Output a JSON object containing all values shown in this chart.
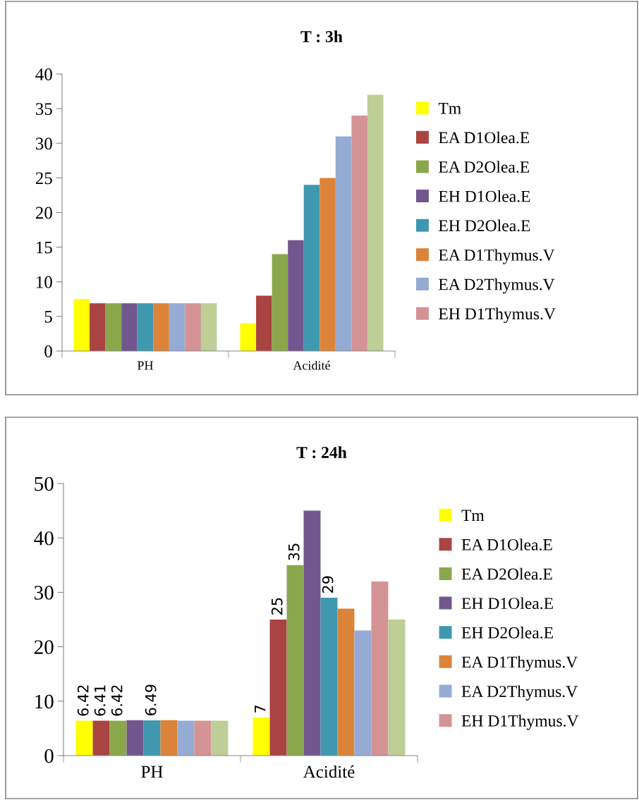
{
  "chart_data": [
    {
      "type": "bar",
      "title": "T : 3h",
      "categories": [
        "PH",
        "Acidité"
      ],
      "ylim": [
        0,
        40
      ],
      "yticks": [
        0,
        5,
        10,
        15,
        20,
        25,
        30,
        35,
        40
      ],
      "grid": false,
      "legend": "right",
      "series": [
        {
          "name": "Tm",
          "color": "#ffff00",
          "values": [
            7.5,
            4
          ]
        },
        {
          "name": "EA D1Olea.E",
          "color": "#a94442",
          "values": [
            6.9,
            8
          ]
        },
        {
          "name": "EA D2Olea.E",
          "color": "#8ba74c",
          "values": [
            6.9,
            14
          ]
        },
        {
          "name": "EH D1Olea.E",
          "color": "#71578e",
          "values": [
            6.9,
            16
          ]
        },
        {
          "name": "EH D2Olea.E",
          "color": "#3f98b0",
          "values": [
            6.9,
            24
          ]
        },
        {
          "name": "EA D1Thymus.V",
          "color": "#dc833a",
          "values": [
            6.9,
            25
          ]
        },
        {
          "name": "EA D2Thymus.V",
          "color": "#95abd3",
          "values": [
            6.9,
            31
          ]
        },
        {
          "name": "EH D1Thymus.V",
          "color": "#d49394",
          "values": [
            6.9,
            34
          ]
        },
        {
          "color": "#bdce96",
          "values": [
            6.9,
            37
          ]
        }
      ]
    },
    {
      "type": "bar",
      "title": "T : 24h",
      "categories": [
        "PH",
        "Acidité"
      ],
      "ylim": [
        0,
        50
      ],
      "yticks": [
        0,
        10,
        20,
        30,
        40,
        50
      ],
      "grid": false,
      "legend": "right",
      "series": [
        {
          "name": "Tm",
          "color": "#ffff00",
          "values": [
            6.42,
            7
          ],
          "value_labels": [
            "6.42",
            "7"
          ]
        },
        {
          "name": "EA D1Olea.E",
          "color": "#a94442",
          "values": [
            6.41,
            25
          ],
          "value_labels": [
            "6.41",
            "25"
          ]
        },
        {
          "name": "EA D2Olea.E",
          "color": "#8ba74c",
          "values": [
            6.42,
            35
          ],
          "value_labels": [
            "6.42",
            "35"
          ]
        },
        {
          "name": "EH D1Olea.E",
          "color": "#71578e",
          "values": [
            6.5,
            45
          ]
        },
        {
          "name": "EH D2Olea.E",
          "color": "#3f98b0",
          "values": [
            6.49,
            29
          ],
          "value_labels": [
            "6.49",
            "29"
          ]
        },
        {
          "name": "EA D1Thymus.V",
          "color": "#dc833a",
          "values": [
            6.5,
            27
          ]
        },
        {
          "name": "EA D2Thymus.V",
          "color": "#95abd3",
          "values": [
            6.4,
            23
          ]
        },
        {
          "name": "EH D1Thymus.V",
          "color": "#d49394",
          "values": [
            6.4,
            32
          ]
        },
        {
          "color": "#bdce96",
          "values": [
            6.4,
            25
          ]
        }
      ]
    }
  ]
}
